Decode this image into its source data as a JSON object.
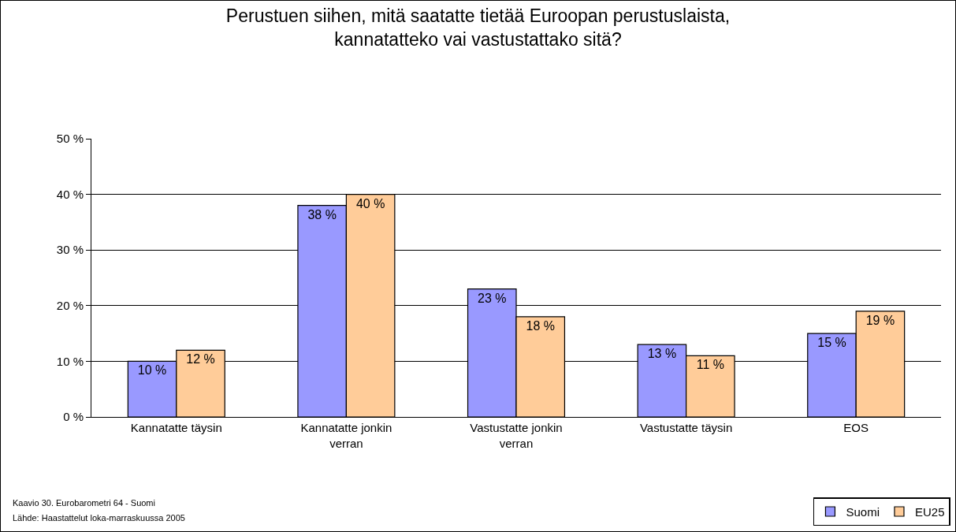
{
  "chart_data": {
    "type": "bar",
    "title": "Perustuen siihen, mitä saatatte tietää Euroopan perustuslaista,\nkannatatteko vai vastustattako sitä?",
    "categories": [
      "Kannatatte täysin",
      "Kannatatte jonkin\nverran",
      "Vastustatte jonkin\nverran",
      "Vastustatte täysin",
      "EOS"
    ],
    "series": [
      {
        "name": "Suomi",
        "color": "#9999ff",
        "values": [
          10,
          38,
          23,
          13,
          15
        ],
        "value_labels": [
          "10 %",
          "38 %",
          "23 %",
          "13 %",
          "15 %"
        ]
      },
      {
        "name": "EU25",
        "color": "#ffcc99",
        "values": [
          12,
          40,
          18,
          11,
          19
        ],
        "value_labels": [
          "12 %",
          "40 %",
          "18 %",
          "11 %",
          "19 %"
        ]
      }
    ],
    "ylim": [
      0,
      50
    ],
    "yticks": [
      {
        "value": 0,
        "label": "0 %"
      },
      {
        "value": 10,
        "label": "10 %"
      },
      {
        "value": 20,
        "label": "20 %"
      },
      {
        "value": 30,
        "label": "30 %"
      },
      {
        "value": 40,
        "label": "40 %"
      },
      {
        "value": 50,
        "label": "50 %"
      }
    ],
    "grid": "y",
    "legend": "bottom right",
    "annotations": [
      "Kaavio 30. Eurobarometri 64 - Suomi",
      "Lähde: Haastattelut loka-marraskuussa 2005"
    ]
  }
}
